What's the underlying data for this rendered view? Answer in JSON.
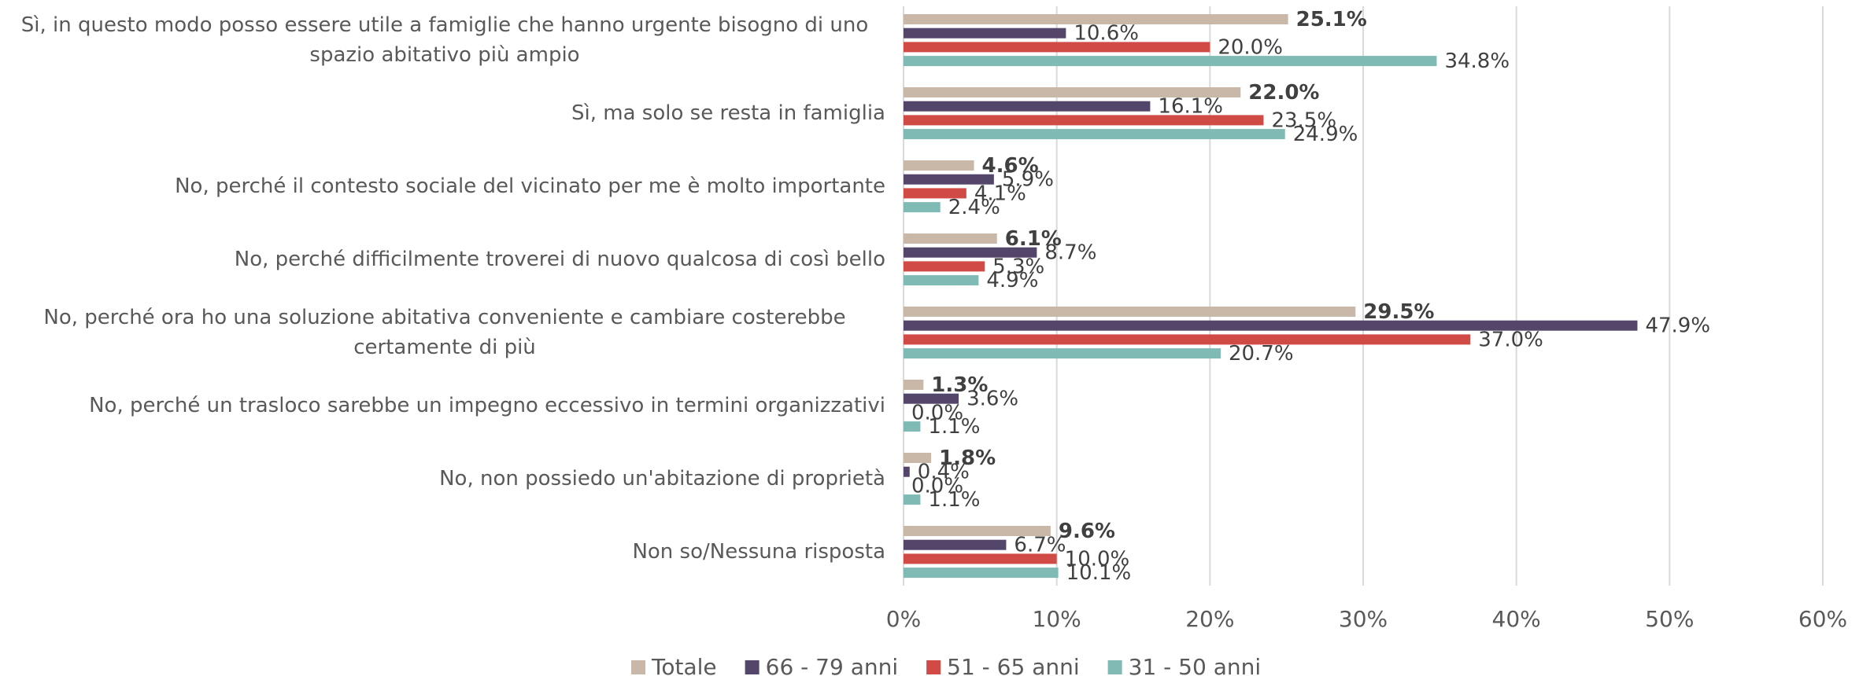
{
  "chart_data": {
    "type": "hbar",
    "categories": [
      "Sì, in questo modo posso essere utile a famiglie che hanno urgente bisogno di uno spazio abitativo più ampio",
      "Sì, ma solo se resta in famiglia",
      "No, perché il contesto sociale del vicinato per me è molto importante",
      "No, perché difficilmente troverei di nuovo qualcosa di così bello",
      "No, perché ora ho una soluzione abitativa conveniente e cambiare costerebbe certamente di più",
      "No, perché un trasloco sarebbe un impegno eccessivo in termini organizzativi",
      "No, non possiedo un'abitazione di proprietà",
      "Non so/Nessuna risposta"
    ],
    "series": [
      {
        "name": "Totale",
        "color": "#c9b8a8",
        "values": [
          25.1,
          22.0,
          4.6,
          6.1,
          29.5,
          1.3,
          1.8,
          9.6
        ],
        "value_labels": [
          "25.1%",
          "22.0%",
          "4.6%",
          "6.1%",
          "29.5%",
          "1.3%",
          "1.8%",
          "9.6%"
        ]
      },
      {
        "name": "66 - 79 anni",
        "color": "#54456b",
        "values": [
          10.6,
          16.1,
          5.9,
          8.7,
          47.9,
          3.6,
          0.4,
          6.7
        ],
        "value_labels": [
          "10.6%",
          "16.1%",
          "5.9%",
          "8.7%",
          "47.9%",
          "3.6%",
          "0.4%",
          "6.7%"
        ]
      },
      {
        "name": "51 - 65 anni",
        "color": "#d04b45",
        "values": [
          20.0,
          23.5,
          4.1,
          5.3,
          37.0,
          0.0,
          0.0,
          10.0
        ],
        "value_labels": [
          "20.0%",
          "23.5%",
          "4.1%",
          "5.3%",
          "37.0%",
          "0.0%",
          "0.0%",
          "10.0%"
        ]
      },
      {
        "name": "31 - 50 anni",
        "color": "#7fbab5",
        "values": [
          34.8,
          24.9,
          2.4,
          4.9,
          20.7,
          1.1,
          1.1,
          10.1
        ],
        "value_labels": [
          "34.8%",
          "24.9%",
          "2.4%",
          "4.9%",
          "20.7%",
          "1.1%",
          "1.1%",
          "10.1%"
        ]
      }
    ],
    "xlim": [
      0,
      60
    ],
    "xticks": [
      {
        "value": 0,
        "label": "0%"
      },
      {
        "value": 10,
        "label": "10%"
      },
      {
        "value": 20,
        "label": "20%"
      },
      {
        "value": 30,
        "label": "30%"
      },
      {
        "value": 40,
        "label": "40%"
      },
      {
        "value": 50,
        "label": "50%"
      },
      {
        "value": 60,
        "label": "60%"
      }
    ],
    "grid": true,
    "legend": "bottom"
  }
}
